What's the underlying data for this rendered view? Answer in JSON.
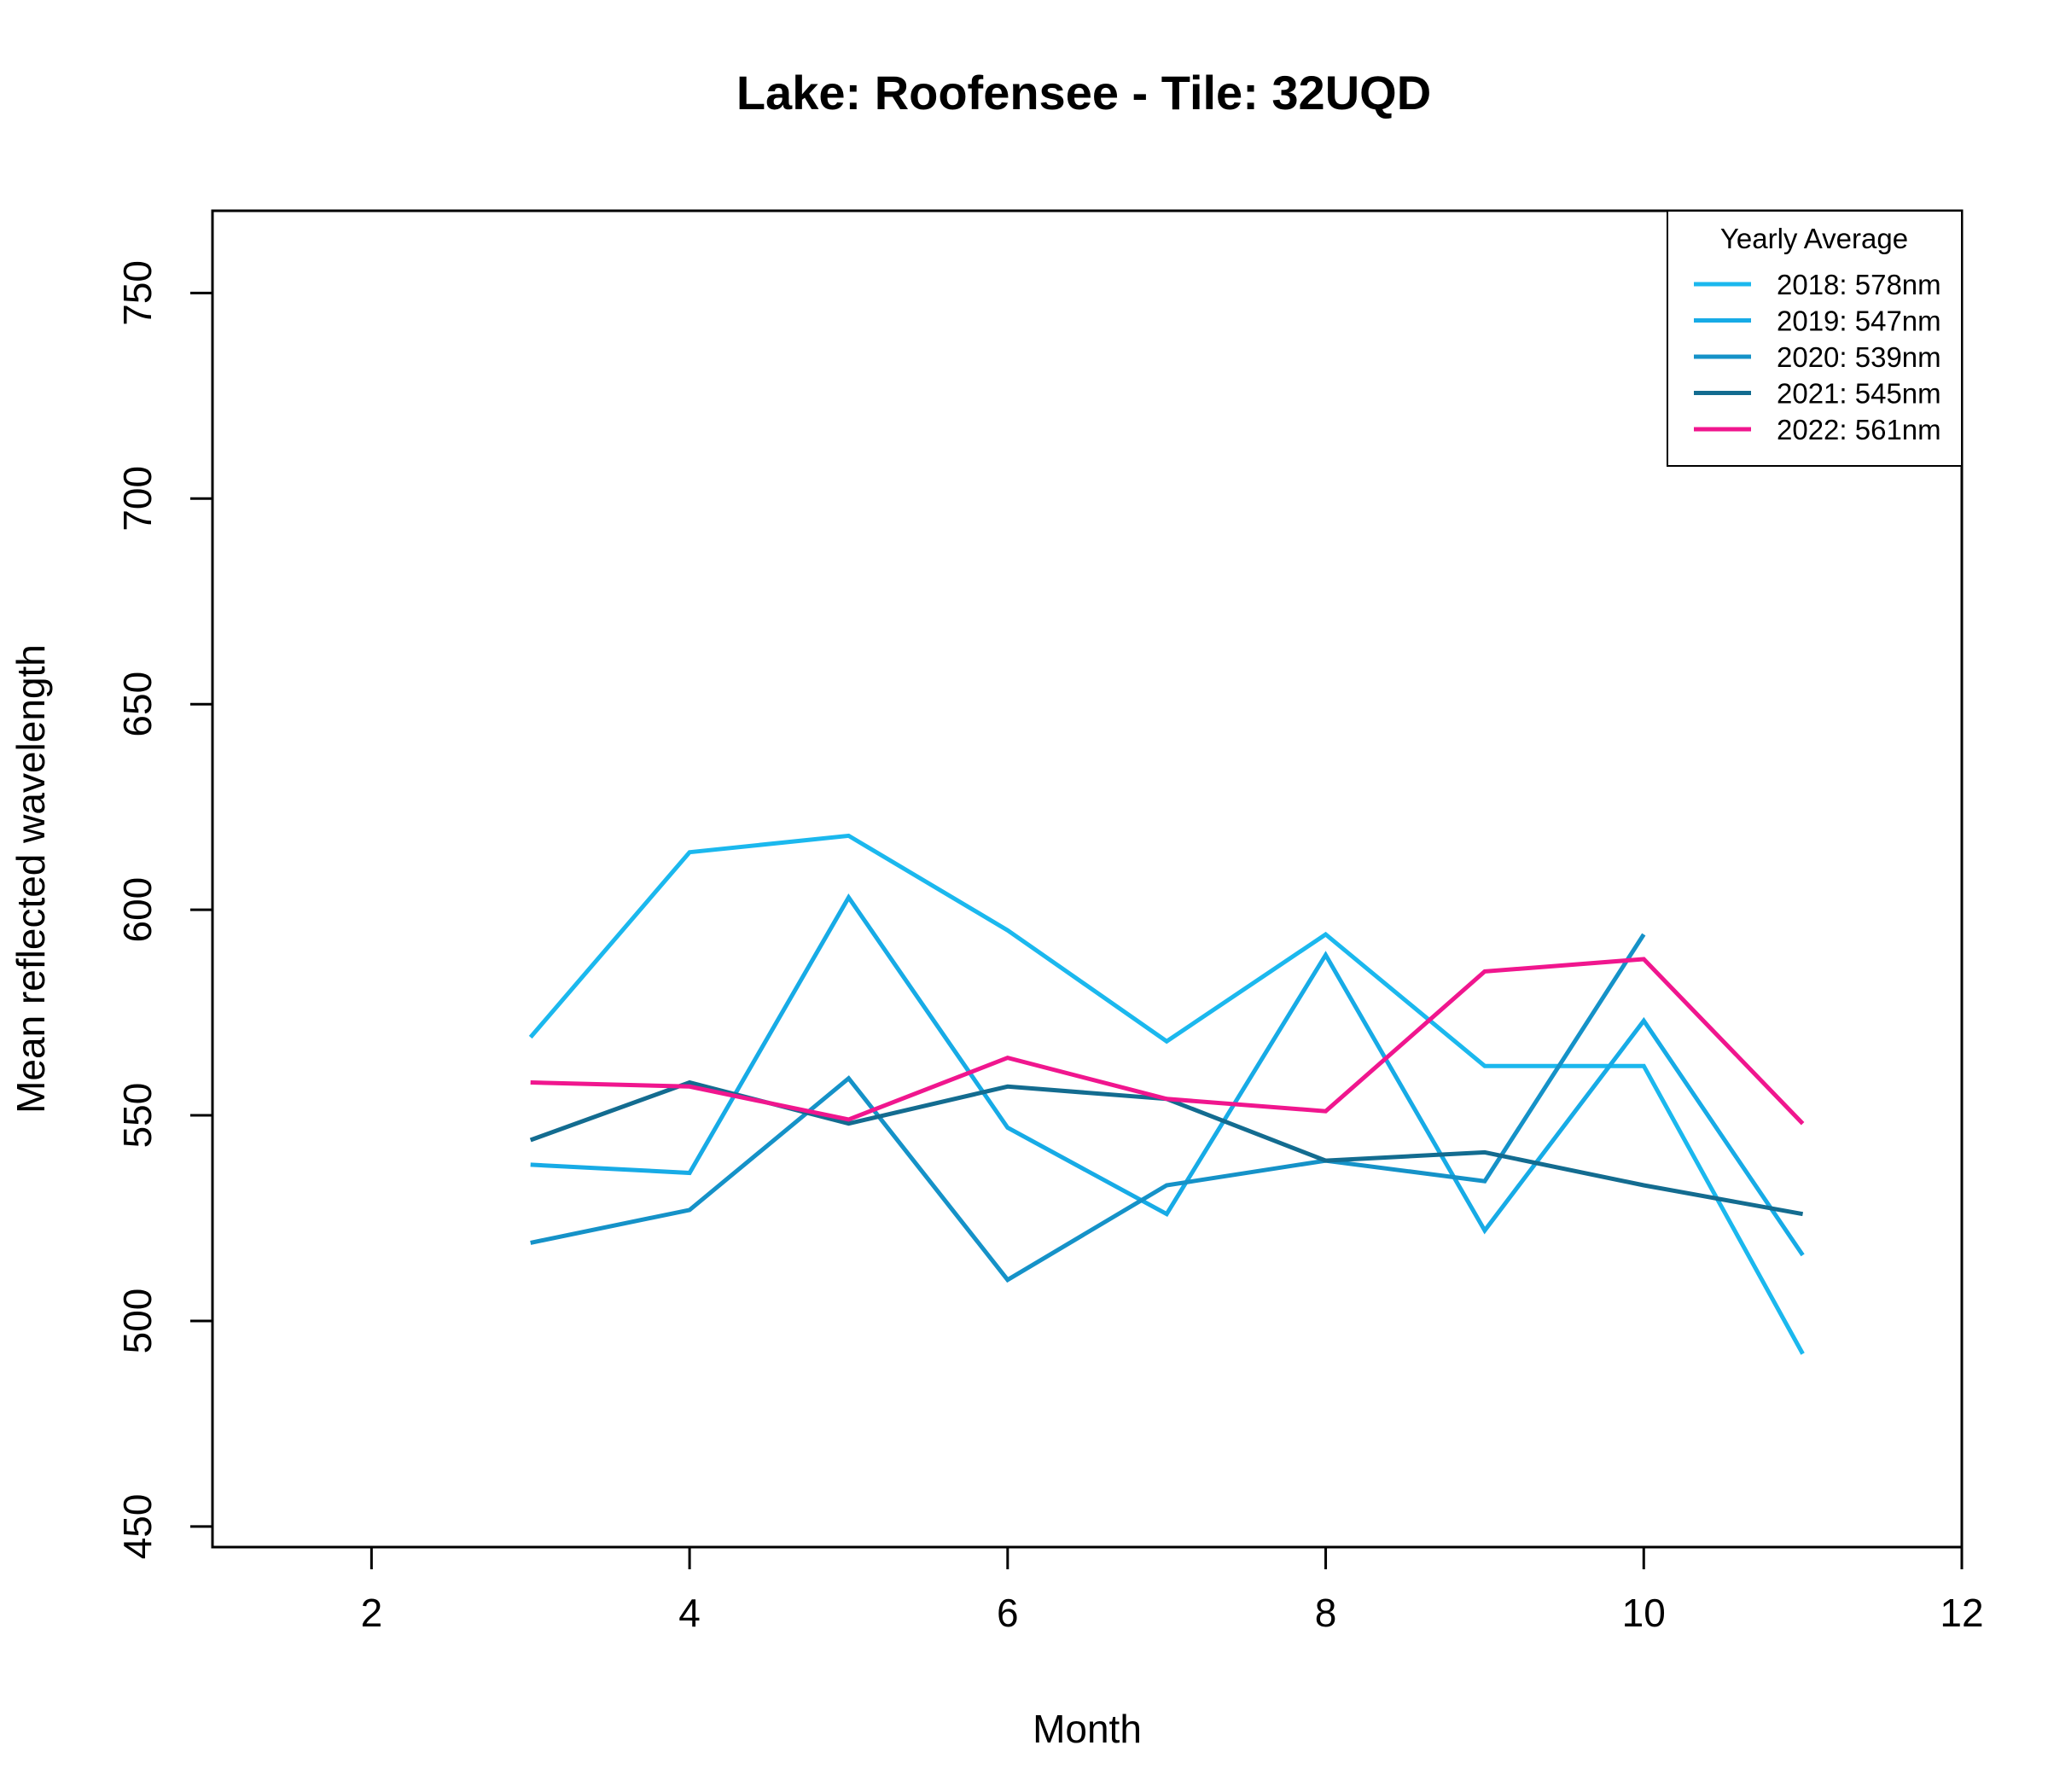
{
  "chart_data": {
    "type": "line",
    "title": "Lake: Roofensee  - Tile: 32UQD",
    "xlabel": "Month",
    "ylabel": "Mean reflected wavelength",
    "xlim": [
      1,
      12
    ],
    "ylim": [
      445,
      770
    ],
    "xticks": [
      2,
      4,
      6,
      8,
      10,
      12
    ],
    "yticks": [
      450,
      500,
      550,
      600,
      650,
      700,
      750
    ],
    "grid": false,
    "legend": {
      "title": "Yearly Average",
      "position": "top-right"
    },
    "x": [
      3,
      4,
      5,
      6,
      7,
      8,
      9,
      10,
      11
    ],
    "series": [
      {
        "name": "2018: 578nm",
        "color": "#1BB8EE",
        "values": [
          569,
          614,
          618,
          595,
          568,
          594,
          562,
          562,
          492
        ]
      },
      {
        "name": "2019: 547nm",
        "color": "#17ABE6",
        "values": [
          538,
          536,
          603,
          547,
          526,
          589,
          522,
          573,
          516
        ]
      },
      {
        "name": "2020: 539nm",
        "color": "#1592C8",
        "values": [
          519,
          527,
          559,
          510,
          533,
          539,
          534,
          594,
          null
        ]
      },
      {
        "name": "2021: 545nm",
        "color": "#136C90",
        "values": [
          544,
          558,
          548,
          557,
          554,
          539,
          541,
          533,
          526
        ]
      },
      {
        "name": "2022: 561nm",
        "color": "#F0168E",
        "values": [
          558,
          557,
          549,
          564,
          554,
          551,
          585,
          588,
          548
        ]
      }
    ]
  }
}
